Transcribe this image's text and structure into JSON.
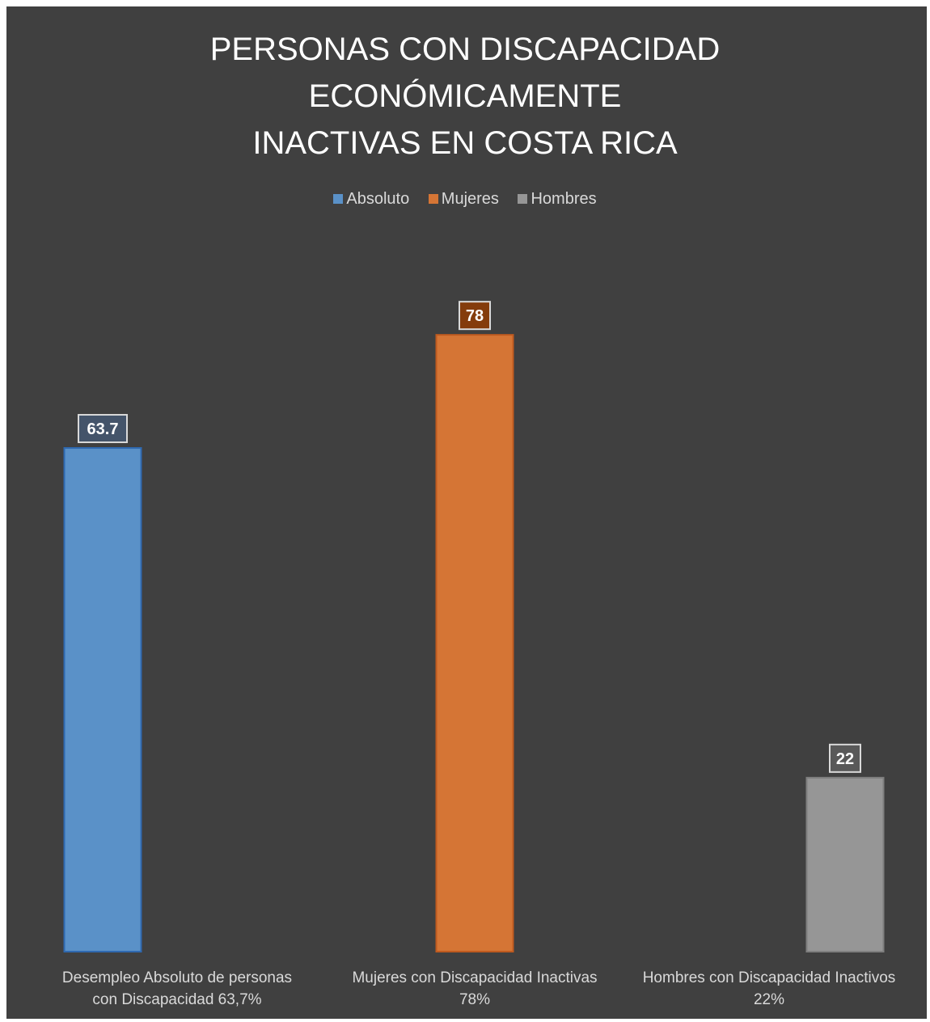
{
  "chart_data": {
    "type": "bar",
    "title_lines": [
      "PERSONAS CON DISCAPACIDAD",
      "ECONÓMICAMENTE",
      "INACTIVAS EN COSTA RICA"
    ],
    "categories": [
      [
        "Desempleo Absoluto de personas",
        "con Discapacidad 63,7%"
      ],
      [
        "Mujeres con Discapacidad Inactivas",
        "78%"
      ],
      [
        "Hombres con Discapacidad Inactivos",
        "22%"
      ]
    ],
    "series": [
      {
        "name": "Absoluto",
        "color": "#5a91c8",
        "edge": "#2f69b0",
        "label_bg": "#44546a",
        "values": [
          63.7,
          null,
          null
        ]
      },
      {
        "name": "Mujeres",
        "color": "#d57535",
        "edge": "#bf5a1f",
        "label_bg": "#843c0c",
        "values": [
          null,
          78,
          null
        ]
      },
      {
        "name": "Hombres",
        "color": "#969696",
        "edge": "#7f7f7f",
        "label_bg": "#595959",
        "values": [
          null,
          null,
          22
        ]
      }
    ],
    "data_labels": [
      "63.7",
      "78",
      "22"
    ],
    "ylim": [
      0,
      90
    ],
    "grid": false,
    "legend_position": "top"
  }
}
